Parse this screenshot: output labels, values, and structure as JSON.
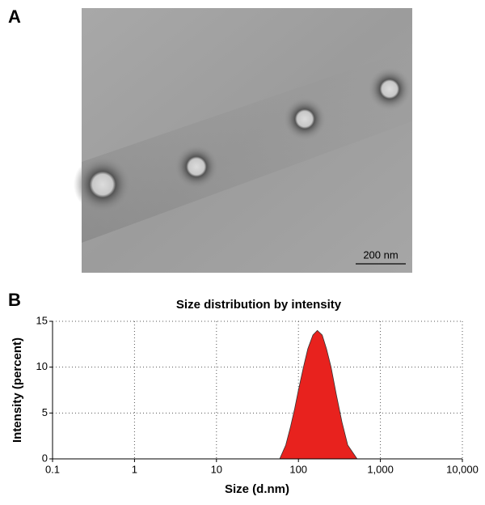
{
  "panel_a": {
    "label": "A",
    "scale_bar": "200 nm"
  },
  "chart_data": {
    "type": "area",
    "panel_label": "B",
    "title": "Size distribution by intensity",
    "x_label": "Size (d.nm)",
    "y_label": "Intensity (percent)",
    "x": [
      59,
      70,
      80,
      90,
      100,
      115,
      130,
      150,
      170,
      195,
      220,
      250,
      290,
      340,
      400,
      520
    ],
    "values": [
      0,
      1.5,
      3.5,
      5.5,
      7.5,
      10,
      12,
      13.5,
      14,
      13.5,
      12,
      10,
      7,
      4,
      1.5,
      0
    ],
    "color": "#e8221e",
    "x_log": true,
    "grid": true,
    "xlim": [
      0.1,
      10000
    ],
    "xticks": [
      0.1,
      1,
      10,
      100,
      {
        "value": 1000,
        "label": "1,000"
      },
      {
        "value": 10000,
        "label": "10,000"
      }
    ],
    "ylim": [
      0,
      15
    ],
    "yticks": [
      0,
      5,
      10,
      15
    ]
  }
}
